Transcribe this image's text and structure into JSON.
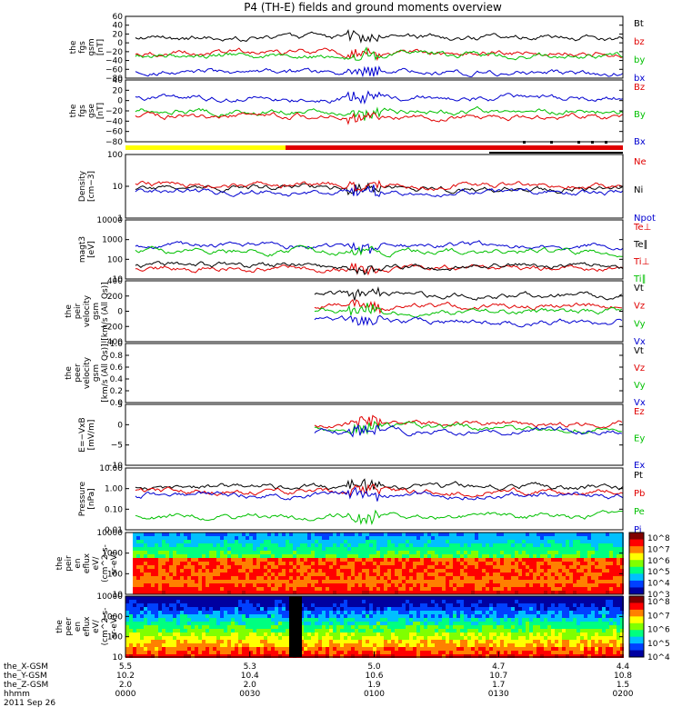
{
  "chart_data": {
    "type": "line",
    "title": "P4 (TH-E) fields and ground moments overview",
    "panels": [
      {
        "ylabel": [
          "the",
          "fgs",
          "gsm",
          "[nT]"
        ],
        "ticks": [
          "60",
          "40",
          "20",
          "0",
          "−20",
          "−40",
          "−60",
          "−80"
        ],
        "legend": [
          [
            "Bt",
            "#000000"
          ],
          [
            "bz",
            "#e00000"
          ],
          [
            "by",
            "#00c000"
          ],
          [
            "bx",
            "#0000d0"
          ]
        ]
      },
      {
        "ylabel": [
          "the",
          "fgs",
          "gse",
          "[nT]"
        ],
        "ticks": [
          "40",
          "20",
          "0",
          "−20",
          "−40",
          "−60",
          "−80"
        ],
        "legend": [
          [
            "Bz",
            "#e00000"
          ],
          [
            "By",
            "#00c000"
          ],
          [
            "Bx",
            "#0000d0"
          ]
        ]
      },
      {
        "ylabel": [
          "Density",
          "[cm−3]"
        ],
        "ticks": [
          "100",
          "10",
          "1"
        ],
        "legend": [
          [
            "Ne",
            "#e00000"
          ],
          [
            "Ni",
            "#000000"
          ],
          [
            "Npot",
            "#0000d0"
          ]
        ]
      },
      {
        "ylabel": [
          "magt3",
          "[eV]"
        ],
        "ticks": [
          "10000",
          "1000",
          "100",
          "10"
        ],
        "legend": [
          [
            "Te⊥",
            "#e00000"
          ],
          [
            "Te∥",
            "#000000"
          ],
          [
            "Ti⊥",
            "#e00000"
          ],
          [
            "Ti∥",
            "#00c000"
          ]
        ]
      },
      {
        "ylabel": [
          "the",
          "peir",
          "velocity",
          "gsm",
          "[km/s (All Qs)]"
        ],
        "ticks": [
          "400",
          "200",
          "0",
          "−200",
          "−400"
        ],
        "legend": [
          [
            "Vt",
            "#000000"
          ],
          [
            "Vz",
            "#e00000"
          ],
          [
            "Vy",
            "#00c000"
          ],
          [
            "Vx",
            "#0000d0"
          ]
        ]
      },
      {
        "ylabel": [
          "the",
          "peer",
          "velocity",
          "gsm",
          "[km/s (All Qs)]"
        ],
        "ticks": [
          "1.0",
          "0.8",
          "0.6",
          "0.4",
          "0.2",
          "0.0"
        ],
        "legend": [
          [
            "Vt",
            "#000000"
          ],
          [
            "Vz",
            "#e00000"
          ],
          [
            "Vy",
            "#00c000"
          ],
          [
            "Vx",
            "#0000d0"
          ]
        ]
      },
      {
        "ylabel": [
          "E=−VxB",
          "[mV/m]"
        ],
        "ticks": [
          "5",
          "0",
          "−5",
          "−10"
        ],
        "legend": [
          [
            "Ez",
            "#e00000"
          ],
          [
            "Ey",
            "#00c000"
          ],
          [
            "Ex",
            "#0000d0"
          ]
        ]
      },
      {
        "ylabel": [
          "Pressure",
          "[nPa]"
        ],
        "ticks": [
          "10.00",
          "1.00",
          "0.10",
          "0.01"
        ],
        "legend": [
          [
            "Pt",
            "#000000"
          ],
          [
            "Pb",
            "#e00000"
          ],
          [
            "Pe",
            "#00c000"
          ],
          [
            "Pi",
            "#0000d0"
          ]
        ]
      },
      {
        "ylabel": [
          "the",
          "peir",
          "en",
          "eflux",
          "eV/",
          "(cm^2-s-",
          "sr-eV)"
        ],
        "ticks": [
          "10000",
          "1000",
          "100",
          "10"
        ],
        "colorbar": [
          "10^8",
          "10^7",
          "10^6",
          "10^5",
          "10^4",
          "10^3"
        ]
      },
      {
        "ylabel": [
          "the",
          "peer",
          "en",
          "eflux",
          "eV/",
          "(cm^2-s-",
          "sr-eV)"
        ],
        "ticks": [
          "10000",
          "1000",
          "100",
          "10"
        ],
        "colorbar": [
          "10^8",
          "10^7",
          "10^6",
          "10^5",
          "10^4"
        ]
      }
    ],
    "x_axis": {
      "row_labels": [
        "the_X-GSM",
        "the_Y-GSM",
        "the_Z-GSM",
        "hhmm",
        "2011 Sep 26"
      ],
      "columns": [
        [
          "5.5",
          "10.2",
          "2.0",
          "0000"
        ],
        [
          "5.3",
          "10.4",
          "2.0",
          "0030"
        ],
        [
          "5.0",
          "10.6",
          "1.9",
          "0100"
        ],
        [
          "4.7",
          "10.7",
          "1.7",
          "0130"
        ],
        [
          "4.4",
          "10.8",
          "1.5",
          "0200"
        ]
      ]
    }
  }
}
